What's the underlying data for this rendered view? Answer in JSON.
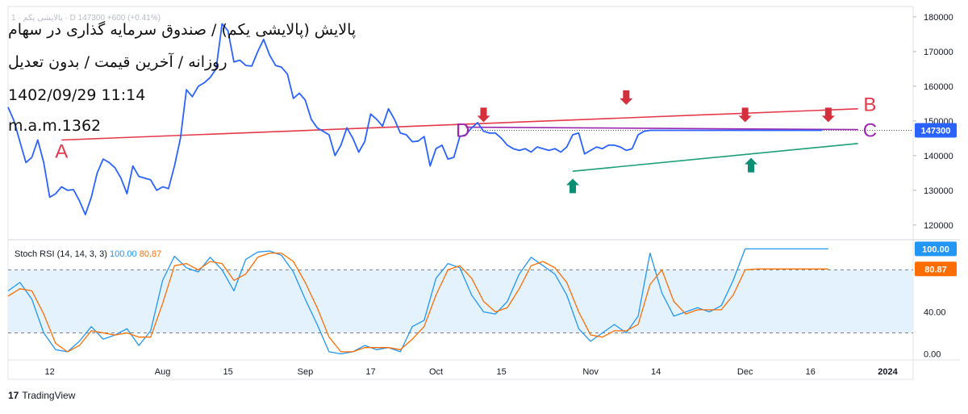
{
  "header": {
    "symbol_line": "1 · پالایشی یکم · D 147300 +600 (+0.41%)"
  },
  "overlay_text": {
    "title": "پالایش (پالایشی یکم) / صندوق سرمایه گذاری در سهام",
    "subtitle": "روزانه / آخرین قیمت / بدون تعدیل",
    "datetime": "1402/09/29 11:14",
    "author": "m.a.m.1362"
  },
  "branding": {
    "label": "TradingView"
  },
  "colors": {
    "price": "#2962ff",
    "resistance": "#e5394a",
    "support": "#1b9e77",
    "horizontal": "#9c27b0",
    "stoch_k": "#2196f3",
    "stoch_d": "#ff6d00",
    "arrow_down": "#d32f3c",
    "arrow_up": "#0a8f74",
    "band": "#e3f2fd"
  },
  "chart_data": [
    {
      "type": "line",
      "title": "پالایش (پالایشی یکم) / صندوق سرمایه گذاری در سهام",
      "timeframe": "Daily",
      "ylim": [
        116000,
        183000
      ],
      "y_ticks": [
        120000,
        130000,
        140000,
        150000,
        160000,
        170000,
        180000
      ],
      "y_tick_labels": [
        "120000",
        "130000",
        "140000",
        "150000",
        "160000",
        "170000",
        "180000"
      ],
      "last_price": 147300,
      "last_price_label": "147300",
      "x_ticks": [
        {
          "label": "12",
          "x": 7
        },
        {
          "label": "Aug",
          "x": 26
        },
        {
          "label": "15",
          "x": 37
        },
        {
          "label": "Sep",
          "x": 50
        },
        {
          "label": "17",
          "x": 61
        },
        {
          "label": "Oct",
          "x": 72
        },
        {
          "label": "15",
          "x": 83
        },
        {
          "label": "Nov",
          "x": 98
        },
        {
          "label": "14",
          "x": 109
        },
        {
          "label": "Dec",
          "x": 124
        },
        {
          "label": "16",
          "x": 135
        },
        {
          "label": "2024",
          "x": 148
        }
      ],
      "x_max": 152,
      "series": [
        {
          "name": "Price",
          "x": [
            0,
            1,
            2,
            3,
            4,
            5,
            6,
            7,
            8,
            9,
            10,
            11,
            12,
            13,
            14,
            15,
            16,
            17,
            18,
            19,
            20,
            21,
            22,
            23,
            24,
            25,
            26,
            27,
            28,
            29,
            30,
            31,
            32,
            33,
            34,
            35,
            36,
            37,
            38,
            39,
            40,
            41,
            42,
            43,
            44,
            45,
            46,
            47,
            48,
            49,
            50,
            51,
            52,
            53,
            54,
            55,
            56,
            57,
            58,
            59,
            60,
            61,
            62,
            63,
            64,
            65,
            66,
            67,
            68,
            69,
            70,
            71,
            72,
            73,
            74,
            75,
            76,
            77,
            78,
            79,
            80,
            81,
            82,
            83,
            84,
            85,
            86,
            87,
            88,
            89,
            90,
            91,
            92,
            93,
            94,
            95,
            96,
            97,
            98,
            99,
            100,
            101,
            102,
            103,
            104,
            105,
            106,
            107,
            108,
            109,
            110,
            111,
            112,
            113,
            114,
            115,
            116,
            117,
            118,
            119,
            120,
            121,
            122,
            123,
            124,
            125,
            126,
            127,
            128,
            129,
            130,
            131,
            132,
            133,
            134,
            135,
            136,
            137
          ],
          "values": [
            154000,
            150000,
            144000,
            138000,
            139500,
            144500,
            138000,
            128000,
            129000,
            131000,
            130000,
            130200,
            127000,
            123000,
            128000,
            135000,
            139000,
            138000,
            136500,
            133500,
            129000,
            137000,
            134000,
            133500,
            133000,
            130000,
            131000,
            130500,
            137000,
            145000,
            159000,
            157000,
            160000,
            161000,
            162500,
            165000,
            178000,
            176000,
            167000,
            167500,
            166000,
            165800,
            170000,
            173500,
            169000,
            166000,
            165500,
            163500,
            156500,
            158000,
            156000,
            150500,
            148000,
            147000,
            146000,
            140000,
            143000,
            148000,
            145000,
            141000,
            144000,
            152000,
            150500,
            148500,
            153500,
            150500,
            146500,
            146000,
            144000,
            144200,
            145500,
            137000,
            142000,
            143000,
            139000,
            139500,
            145500,
            146000,
            148000,
            149500,
            147000,
            146500,
            146500,
            145000,
            143000,
            142000,
            141500,
            142000,
            141000,
            142500,
            142000,
            141500,
            142000,
            141000,
            142500,
            146000,
            146500,
            140500,
            141500,
            142500,
            142000,
            143000,
            143000,
            142500,
            141500,
            142000,
            146000,
            147000,
            147300,
            147300,
            147300,
            147300,
            147300,
            147300,
            147300,
            147300,
            147300,
            147300,
            147300,
            147300,
            147300,
            147300,
            147300,
            147300,
            147300,
            147300,
            147300,
            147300,
            147300,
            147300,
            147300,
            147300,
            147300,
            147300,
            147300,
            147300,
            147300,
            147300
          ]
        }
      ],
      "trendlines": [
        {
          "name": "resistance A-B",
          "from": [
            9,
            144500
          ],
          "to": [
            143,
            153500
          ]
        },
        {
          "name": "support",
          "from": [
            95,
            135500
          ],
          "to": [
            143,
            143500
          ]
        },
        {
          "name": "horizontal D-C",
          "from": [
            77,
            148200
          ],
          "to": [
            143,
            147500
          ]
        }
      ],
      "annotations": [
        {
          "text": "A",
          "at": [
            9,
            141500
          ],
          "color_key": "resistance"
        },
        {
          "text": "B",
          "at": [
            145,
            155000
          ],
          "color_key": "resistance"
        },
        {
          "text": "C",
          "at": [
            145,
            147500
          ],
          "color_key": "horizontal"
        },
        {
          "text": "D",
          "at": [
            76.5,
            147500
          ],
          "color_key": "horizontal"
        }
      ],
      "arrows_down": [
        [
          80,
          151500
        ],
        [
          104,
          156500
        ],
        [
          124,
          151500
        ],
        [
          138,
          151500
        ]
      ],
      "arrows_up": [
        [
          95,
          131500
        ],
        [
          125,
          137500
        ]
      ]
    },
    {
      "type": "line",
      "title": "Stoch RSI (14, 14, 3, 3)",
      "legend_values": [
        "100.00",
        "80.87"
      ],
      "ylim": [
        -5,
        108
      ],
      "y_ticks": [
        0,
        40
      ],
      "y_tick_labels": [
        "0.00",
        "40.00"
      ],
      "band": [
        20,
        80
      ],
      "last_k_label": "100.00",
      "last_d_label": "80.87",
      "series": [
        {
          "name": "%K",
          "x": [
            0,
            2,
            4,
            6,
            8,
            10,
            12,
            14,
            16,
            18,
            20,
            22,
            24,
            26,
            28,
            30,
            32,
            34,
            36,
            38,
            40,
            42,
            44,
            46,
            48,
            50,
            52,
            54,
            56,
            58,
            60,
            62,
            64,
            66,
            68,
            70,
            72,
            74,
            76,
            78,
            80,
            82,
            84,
            86,
            88,
            90,
            92,
            94,
            96,
            98,
            100,
            102,
            104,
            106,
            108,
            110,
            112,
            114,
            116,
            118,
            120,
            122,
            124,
            126,
            128,
            130,
            132,
            134,
            136,
            138
          ],
          "values": [
            60,
            68,
            52,
            20,
            4,
            2,
            12,
            26,
            14,
            18,
            24,
            8,
            22,
            70,
            93,
            82,
            78,
            92,
            80,
            60,
            90,
            97,
            98,
            94,
            78,
            52,
            28,
            2,
            0,
            2,
            8,
            4,
            6,
            2,
            26,
            32,
            72,
            86,
            82,
            56,
            40,
            38,
            50,
            76,
            92,
            84,
            76,
            56,
            24,
            12,
            20,
            28,
            20,
            36,
            96,
            58,
            36,
            40,
            44,
            40,
            46,
            70,
            100,
            100,
            100,
            100,
            100,
            100,
            100,
            100
          ],
          "color_key": "stoch_k"
        },
        {
          "name": "%D",
          "x": [
            0,
            2,
            4,
            6,
            8,
            10,
            12,
            14,
            16,
            18,
            20,
            22,
            24,
            26,
            28,
            30,
            32,
            34,
            36,
            38,
            40,
            42,
            44,
            46,
            48,
            50,
            52,
            54,
            56,
            58,
            60,
            62,
            64,
            66,
            68,
            70,
            72,
            74,
            76,
            78,
            80,
            82,
            84,
            86,
            88,
            90,
            92,
            94,
            96,
            98,
            100,
            102,
            104,
            106,
            108,
            110,
            112,
            114,
            116,
            118,
            120,
            122,
            124,
            126,
            128,
            130,
            132,
            134,
            136,
            138
          ],
          "values": [
            55,
            62,
            60,
            38,
            10,
            2,
            8,
            22,
            20,
            18,
            20,
            16,
            16,
            48,
            84,
            86,
            80,
            88,
            86,
            70,
            76,
            92,
            96,
            96,
            88,
            68,
            44,
            16,
            2,
            2,
            6,
            6,
            6,
            4,
            14,
            26,
            56,
            80,
            84,
            72,
            50,
            40,
            44,
            62,
            84,
            88,
            82,
            68,
            40,
            18,
            16,
            22,
            22,
            28,
            66,
            80,
            50,
            38,
            42,
            42,
            42,
            56,
            80,
            80.87,
            80.87,
            80.87,
            80.87,
            80.87,
            80.87,
            80.87
          ],
          "color_key": "stoch_d"
        }
      ]
    }
  ]
}
